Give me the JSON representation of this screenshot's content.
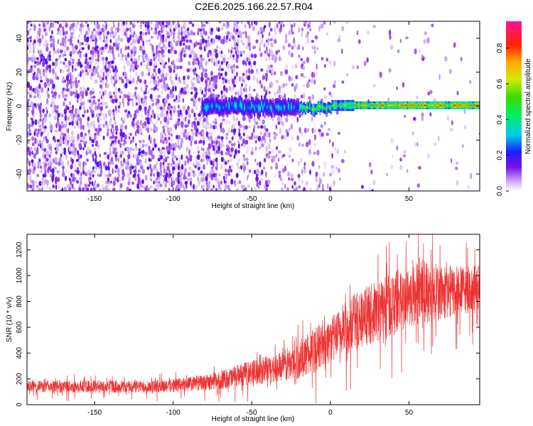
{
  "figure": {
    "title": "C2E6.2025.166.22.57.R04"
  },
  "chart_data": [
    {
      "type": "heatmap",
      "xlabel": "Height of straight line (km)",
      "ylabel": "Frequency (Hz)",
      "xlim": [
        -193,
        95
      ],
      "ylim": [
        -50,
        50
      ],
      "xticks": [
        -150,
        -100,
        -50,
        0,
        50
      ],
      "yticks": [
        -40,
        -20,
        0,
        20,
        40
      ],
      "colorbar": {
        "label": "Normalized spectral amplitude",
        "range": [
          0.0,
          0.95
        ],
        "ticks": [
          "0.0",
          "0.2",
          "0.4",
          "0.6",
          "0.8"
        ],
        "colormap": "rainbow (white-violet-blue-cyan-green-yellow-orange-red-magenta)"
      },
      "grid": false,
      "features": [
        {
          "x_range": [
            -193,
            -80
          ],
          "freq_range": [
            -50,
            50
          ],
          "amplitude": 0.05,
          "note": "broadband noise"
        },
        {
          "x_range": [
            -80,
            -20
          ],
          "freq_center": 0,
          "freq_halfwidth": 5,
          "amplitude": 0.3
        },
        {
          "x_range": [
            -20,
            95
          ],
          "freq_center": 0,
          "freq_halfwidth": 2,
          "amplitude": 0.8
        }
      ]
    },
    {
      "type": "line",
      "xlabel": "Height of straight line (km)",
      "ylabel": "SNR (10 * v/v)",
      "xlim": [
        -193,
        95
      ],
      "ylim": [
        0,
        1320
      ],
      "xticks": [
        -150,
        -100,
        -50,
        0,
        50
      ],
      "yticks": [
        0,
        200,
        400,
        600,
        800,
        1000,
        1200
      ],
      "grid": false,
      "series": [
        {
          "color": "#ee3333",
          "x": [
            -193,
            -180,
            -160,
            -140,
            -120,
            -100,
            -80,
            -70,
            -60,
            -50,
            -40,
            -30,
            -20,
            -10,
            -5,
            0,
            5,
            10,
            20,
            30,
            40,
            50,
            55,
            60,
            70,
            80,
            95
          ],
          "mean": [
            140,
            140,
            140,
            140,
            140,
            150,
            170,
            190,
            220,
            250,
            270,
            300,
            350,
            420,
            480,
            500,
            540,
            600,
            680,
            720,
            800,
            840,
            860,
            880,
            870,
            880,
            900
          ],
          "spread": [
            70,
            80,
            80,
            80,
            80,
            90,
            100,
            120,
            140,
            160,
            180,
            200,
            250,
            300,
            300,
            300,
            320,
            350,
            380,
            400,
            420,
            400,
            420,
            420,
            380,
            320,
            300
          ]
        }
      ]
    }
  ]
}
